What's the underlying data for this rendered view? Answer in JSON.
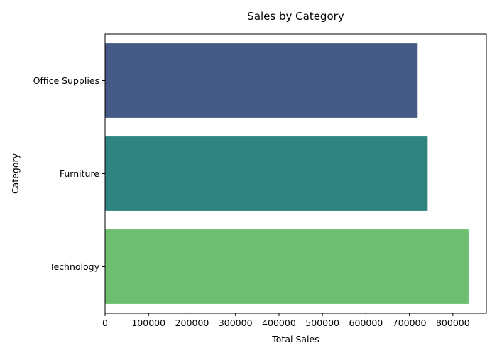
{
  "chart_data": {
    "type": "bar",
    "orientation": "horizontal",
    "title": "Sales by Category",
    "xlabel": "Total Sales",
    "ylabel": "Category",
    "categories": [
      "Office Supplies",
      "Furniture",
      "Technology"
    ],
    "values": [
      719000,
      742000,
      836000
    ],
    "colors": [
      "#455a87",
      "#2e847f",
      "#6dbe6e"
    ],
    "xlim": [
      0,
      877000
    ],
    "xticks": [
      0,
      100000,
      200000,
      300000,
      400000,
      500000,
      600000,
      700000,
      800000
    ],
    "xtick_labels": [
      "0",
      "100000",
      "200000",
      "300000",
      "400000",
      "500000",
      "600000",
      "700000",
      "800000"
    ],
    "grid": false,
    "legend": "none"
  }
}
